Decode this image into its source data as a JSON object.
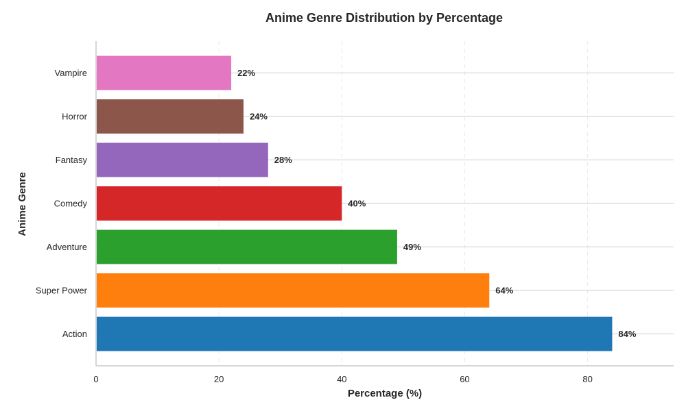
{
  "chart_data": {
    "type": "bar",
    "orientation": "horizontal",
    "title": "Anime Genre Distribution by Percentage",
    "xlabel": "Percentage (%)",
    "ylabel": "Anime Genre",
    "xlim": [
      0,
      94
    ],
    "xticks": [
      0,
      20,
      40,
      60,
      80
    ],
    "grid": true,
    "categories": [
      "Action",
      "Super Power",
      "Adventure",
      "Comedy",
      "Fantasy",
      "Horror",
      "Vampire"
    ],
    "values": [
      84,
      64,
      49,
      40,
      28,
      24,
      22
    ],
    "value_labels": [
      "84%",
      "64%",
      "49%",
      "40%",
      "28%",
      "24%",
      "22%"
    ],
    "colors": [
      "#1f77b4",
      "#ff7f0e",
      "#2ca02c",
      "#d62728",
      "#9467bd",
      "#8c564b",
      "#e377c2"
    ]
  }
}
